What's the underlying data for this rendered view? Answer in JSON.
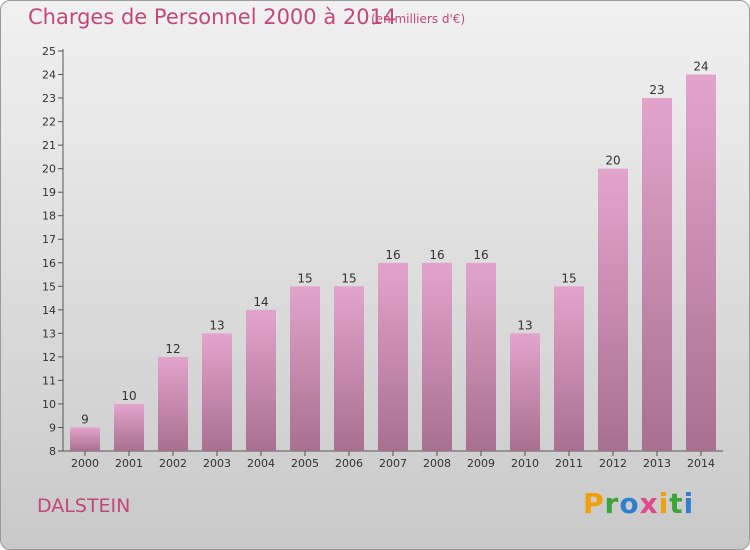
{
  "title": "Charges de Personnel 2000 à 2014",
  "subtitle": "(en milliers d'€)",
  "commune": "DALSTEIN",
  "logo": {
    "letters": [
      "P",
      "r",
      "o",
      "x",
      "i",
      "t",
      "i"
    ],
    "colors": [
      "#f0a000",
      "#3aa33a",
      "#2f7fd0",
      "#e04a8a",
      "#f0a000",
      "#3aa33a",
      "#2f7fd0"
    ]
  },
  "colors": {
    "bar_top": "#e3a4cc",
    "bar_bottom": "#a8708f",
    "text_accent": "#c2477a"
  },
  "chart_data": {
    "type": "bar",
    "categories": [
      "2000",
      "2001",
      "2002",
      "2003",
      "2004",
      "2005",
      "2006",
      "2007",
      "2008",
      "2009",
      "2010",
      "2011",
      "2012",
      "2013",
      "2014"
    ],
    "values": [
      9,
      10,
      12,
      13,
      14,
      15,
      15,
      16,
      16,
      16,
      13,
      15,
      20,
      23,
      24
    ],
    "title": "Charges de Personnel 2000 à 2014",
    "subtitle": "(en milliers d'€)",
    "xlabel": "",
    "ylabel": "",
    "ylim": [
      8,
      25
    ],
    "yticks": [
      8,
      9,
      10,
      11,
      12,
      13,
      14,
      15,
      16,
      17,
      18,
      19,
      20,
      21,
      22,
      23,
      24,
      25
    ],
    "grid": false,
    "data_labels": true
  }
}
